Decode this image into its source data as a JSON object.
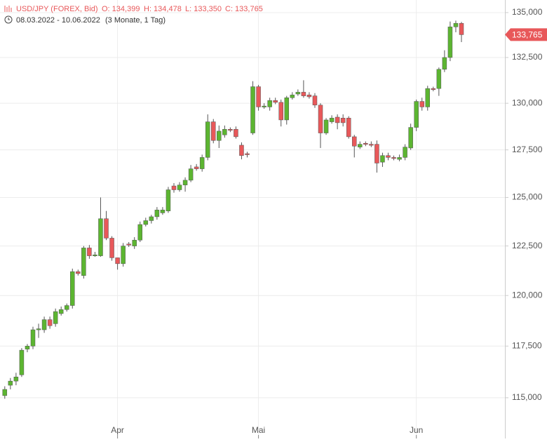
{
  "chart_data": {
    "type": "candlestick",
    "title": "USD/JPY (FOREX, Bid)",
    "stats": [
      "O: 134,399",
      "H: 134,478",
      "L: 133,350",
      "C: 133,765"
    ],
    "date_range": "08.03.2022 - 10.06.2022",
    "period": "(3 Monate, 1 Tag)",
    "log_scale": true,
    "grid": true,
    "up_color": "#5cb531",
    "down_color": "#e8585a",
    "categories": [
      null,
      null,
      null,
      null,
      null,
      null,
      null,
      null,
      null,
      null,
      null,
      null,
      null,
      null,
      null,
      null,
      null,
      null,
      null,
      null,
      "Apr",
      null,
      null,
      null,
      null,
      null,
      null,
      null,
      null,
      null,
      null,
      null,
      null,
      null,
      null,
      null,
      null,
      null,
      null,
      null,
      null,
      null,
      null,
      null,
      null,
      "Mai",
      null,
      null,
      null,
      null,
      null,
      null,
      null,
      null,
      null,
      null,
      null,
      null,
      null,
      null,
      null,
      null,
      null,
      null,
      null,
      null,
      null,
      null,
      null,
      null,
      null,
      null,
      null,
      "Jun",
      null,
      null,
      null,
      null,
      null,
      null,
      null,
      null
    ],
    "open": [
      115.1,
      115.6,
      115.8,
      116.1,
      117.35,
      117.5,
      118.3,
      118.3,
      118.8,
      118.6,
      119.1,
      119.3,
      119.5,
      121.2,
      121.0,
      122.4,
      122.0,
      122.0,
      123.9,
      122.9,
      121.9,
      121.6,
      122.6,
      122.5,
      122.8,
      123.6,
      123.8,
      124.0,
      124.2,
      124.3,
      125.6,
      125.4,
      125.65,
      125.9,
      126.6,
      126.5,
      127.1,
      129.0,
      128.0,
      128.3,
      128.6,
      128.6,
      127.75,
      127.3,
      128.4,
      130.9,
      129.8,
      129.8,
      130.15,
      130.05,
      129.1,
      130.3,
      130.5,
      130.6,
      130.45,
      130.4,
      129.9,
      128.4,
      129.0,
      129.25,
      129.2,
      129.2,
      128.2,
      127.65,
      127.85,
      127.8,
      127.8,
      126.85,
      127.2,
      127.1,
      127.0,
      127.1,
      127.6,
      128.7,
      130.1,
      129.8,
      130.8,
      130.8,
      131.85,
      132.5,
      134.2,
      134.399
    ],
    "high": [
      115.55,
      115.95,
      116.2,
      117.4,
      117.6,
      118.45,
      118.6,
      118.95,
      118.95,
      119.35,
      119.45,
      119.6,
      121.35,
      121.3,
      122.5,
      122.55,
      122.2,
      125.0,
      124.3,
      123.0,
      121.9,
      122.65,
      122.7,
      122.95,
      123.75,
      123.95,
      124.1,
      124.5,
      124.5,
      125.55,
      125.75,
      125.8,
      126.05,
      126.7,
      126.75,
      127.25,
      129.4,
      129.15,
      128.8,
      128.8,
      128.7,
      128.75,
      127.9,
      127.4,
      131.2,
      131.0,
      130.0,
      130.3,
      130.3,
      130.2,
      130.4,
      130.6,
      130.75,
      131.25,
      130.6,
      130.55,
      130.0,
      129.2,
      129.35,
      129.4,
      129.4,
      129.3,
      128.3,
      127.95,
      127.95,
      127.95,
      128.0,
      127.35,
      127.35,
      127.2,
      127.25,
      127.8,
      128.9,
      130.2,
      130.3,
      130.95,
      130.9,
      131.95,
      132.9,
      134.5,
      134.55,
      134.478
    ],
    "low": [
      114.95,
      115.4,
      115.6,
      116.0,
      117.2,
      117.35,
      117.9,
      118.15,
      118.35,
      118.45,
      119.0,
      119.2,
      119.35,
      121.0,
      120.85,
      121.85,
      121.95,
      121.95,
      122.8,
      121.75,
      121.3,
      121.45,
      122.45,
      122.35,
      122.7,
      123.5,
      123.65,
      123.85,
      124.1,
      124.2,
      125.25,
      125.3,
      125.3,
      125.8,
      126.4,
      126.35,
      126.95,
      127.85,
      127.6,
      128.15,
      128.45,
      128.1,
      127.0,
      127.1,
      128.3,
      129.6,
      129.7,
      129.6,
      129.95,
      128.75,
      128.85,
      130.2,
      130.4,
      130.3,
      130.25,
      129.75,
      127.6,
      128.3,
      128.9,
      128.6,
      128.75,
      128.1,
      127.1,
      127.55,
      127.7,
      127.65,
      126.3,
      126.6,
      126.95,
      126.95,
      126.9,
      126.95,
      127.5,
      128.5,
      129.6,
      129.6,
      130.65,
      130.4,
      131.7,
      132.3,
      133.9,
      133.35
    ],
    "close": [
      115.4,
      115.8,
      116.0,
      117.3,
      117.5,
      118.3,
      118.35,
      118.8,
      118.5,
      119.2,
      119.3,
      119.5,
      121.2,
      121.1,
      122.4,
      122.0,
      122.05,
      123.9,
      122.9,
      121.9,
      121.6,
      122.5,
      122.55,
      122.8,
      123.6,
      123.8,
      124.0,
      124.35,
      124.35,
      125.4,
      125.4,
      125.65,
      125.9,
      126.5,
      126.5,
      127.1,
      129.0,
      128.0,
      128.5,
      128.6,
      128.55,
      128.2,
      127.2,
      127.25,
      130.9,
      129.8,
      129.85,
      130.15,
      130.05,
      129.1,
      130.3,
      130.45,
      130.6,
      130.4,
      130.35,
      129.9,
      128.4,
      129.1,
      129.2,
      128.95,
      128.95,
      128.2,
      127.7,
      127.8,
      127.8,
      127.75,
      126.8,
      127.2,
      127.1,
      127.05,
      127.1,
      127.65,
      128.7,
      130.1,
      129.8,
      130.8,
      130.75,
      131.85,
      132.5,
      134.2,
      134.4,
      133.765
    ],
    "last_price": {
      "value": 133.765,
      "label": "133,765"
    },
    "ylim": [
      113.96,
      135.71
    ],
    "yticks": [
      {
        "value": 115,
        "label": "115,000"
      },
      {
        "value": 117.5,
        "label": "117,500"
      },
      {
        "value": 120,
        "label": "120,000"
      },
      {
        "value": 122.5,
        "label": "122,500"
      },
      {
        "value": 125,
        "label": "125,000"
      },
      {
        "value": 127.5,
        "label": "127,500"
      },
      {
        "value": 130,
        "label": "130,000"
      },
      {
        "value": 132.5,
        "label": "132,500"
      },
      {
        "value": 135,
        "label": "135,000"
      }
    ]
  }
}
